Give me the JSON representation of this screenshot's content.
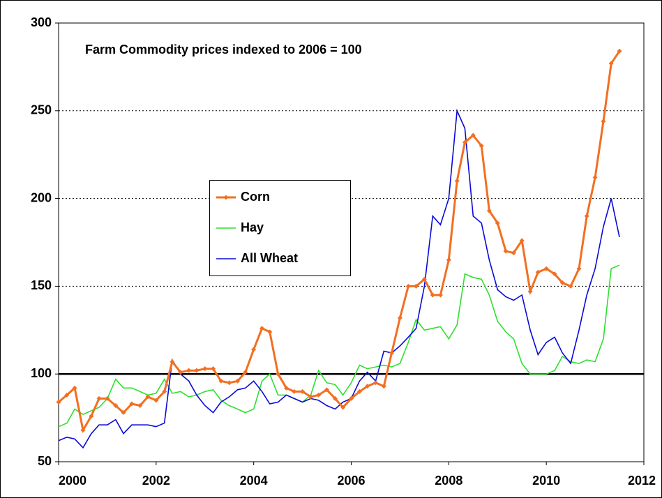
{
  "chart_data": {
    "type": "line",
    "title": "Farm Commodity prices indexed to 2006 = 100",
    "x": [
      2000,
      2000.17,
      2000.33,
      2000.5,
      2000.67,
      2000.83,
      2001,
      2001.17,
      2001.33,
      2001.5,
      2001.67,
      2001.83,
      2002,
      2002.17,
      2002.33,
      2002.5,
      2002.67,
      2002.83,
      2003,
      2003.17,
      2003.33,
      2003.5,
      2003.67,
      2003.83,
      2004,
      2004.17,
      2004.33,
      2004.5,
      2004.67,
      2004.83,
      2005,
      2005.17,
      2005.33,
      2005.5,
      2005.67,
      2005.83,
      2006,
      2006.17,
      2006.33,
      2006.5,
      2006.67,
      2006.83,
      2007,
      2007.17,
      2007.33,
      2007.5,
      2007.67,
      2007.83,
      2008,
      2008.17,
      2008.33,
      2008.5,
      2008.67,
      2008.83,
      2009,
      2009.17,
      2009.33,
      2009.5,
      2009.67,
      2009.83,
      2010,
      2010.17,
      2010.33,
      2010.5,
      2010.67,
      2010.83,
      2011,
      2011.17,
      2011.33,
      2011.5
    ],
    "series": [
      {
        "name": "Corn",
        "color": "#f26f21",
        "markers": true,
        "values": [
          84,
          88,
          92,
          68,
          76,
          86,
          86,
          82,
          78,
          83,
          82,
          87,
          85,
          90,
          107,
          101,
          102,
          102,
          103,
          103,
          96,
          95,
          96,
          101,
          114,
          126,
          124,
          100,
          92,
          90,
          90,
          87,
          88,
          91,
          86,
          81,
          86,
          90,
          93,
          95,
          93,
          112,
          132,
          150,
          150,
          154,
          145,
          145,
          165,
          210,
          232,
          236,
          230,
          193,
          186,
          170,
          169,
          176,
          147,
          158,
          160,
          157,
          152,
          150,
          160,
          190,
          212,
          244,
          277,
          284
        ]
      },
      {
        "name": "Hay",
        "color": "#2ee02e",
        "markers": false,
        "values": [
          70,
          72,
          80,
          77,
          79,
          81,
          86,
          97,
          92,
          92,
          90,
          88,
          89,
          97,
          89,
          90,
          87,
          88,
          90,
          91,
          85,
          82,
          80,
          78,
          80,
          96,
          100,
          88,
          88,
          86,
          84,
          88,
          102,
          95,
          94,
          88,
          95,
          105,
          103,
          104,
          105,
          104,
          106,
          118,
          131,
          125,
          126,
          127,
          120,
          128,
          157,
          155,
          154,
          145,
          130,
          124,
          120,
          106,
          100,
          100,
          100,
          102,
          110,
          107,
          106,
          108,
          107,
          120,
          160,
          162
        ]
      },
      {
        "name": "All Wheat",
        "color": "#0a0ad8",
        "markers": false,
        "values": [
          62,
          64,
          63,
          58,
          66,
          71,
          71,
          74,
          66,
          71,
          71,
          71,
          70,
          72,
          108,
          100,
          96,
          88,
          82,
          78,
          84,
          87,
          91,
          92,
          96,
          90,
          83,
          84,
          88,
          86,
          84,
          86,
          85,
          82,
          80,
          84,
          86,
          96,
          101,
          96,
          113,
          112,
          116,
          121,
          126,
          150,
          190,
          185,
          200,
          250,
          240,
          190,
          186,
          165,
          148,
          144,
          142,
          145,
          125,
          111,
          118,
          121,
          112,
          106,
          125,
          145,
          160,
          184,
          200,
          178
        ]
      }
    ],
    "xlim": [
      2000,
      2012
    ],
    "xticks": [
      2000,
      2002,
      2004,
      2006,
      2008,
      2010,
      2012
    ],
    "ylim": [
      50,
      300
    ],
    "yticks": [
      50,
      100,
      150,
      200,
      250,
      300
    ],
    "grid": true,
    "reference_line": 100
  }
}
